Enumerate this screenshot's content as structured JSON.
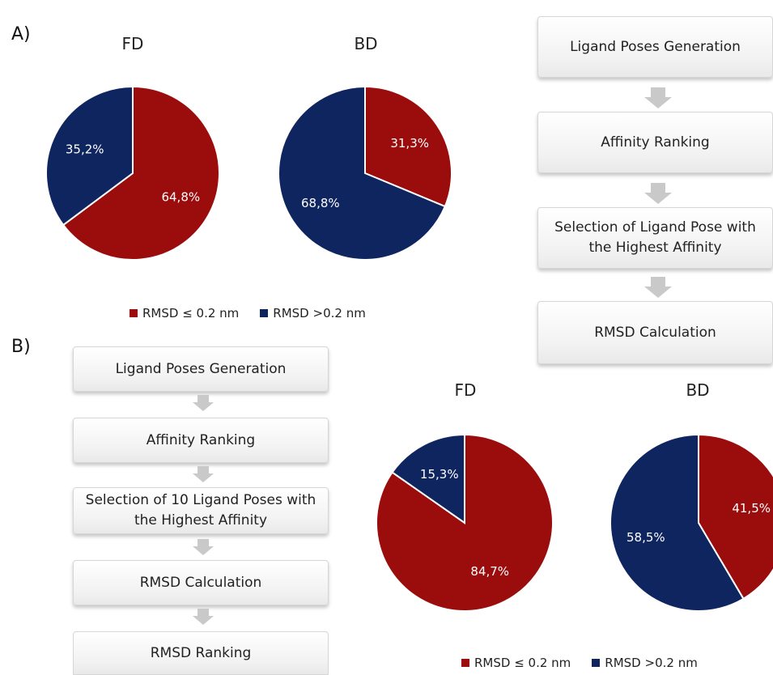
{
  "panels": {
    "a_label": "A)",
    "b_label": "B)"
  },
  "colors": {
    "rmsd_low": "#9b0d0d",
    "rmsd_high": "#0f2560"
  },
  "chart_data": [
    {
      "type": "pie",
      "panel": "A",
      "title": "FD",
      "slices": [
        {
          "name": "RMSD ≤ 0.2 nm",
          "value": 64.8,
          "label": "64,8%"
        },
        {
          "name": "RMSD >0.2 nm",
          "value": 35.2,
          "label": "35,2%"
        }
      ]
    },
    {
      "type": "pie",
      "panel": "A",
      "title": "BD",
      "slices": [
        {
          "name": "RMSD ≤ 0.2 nm",
          "value": 31.3,
          "label": "31,3%"
        },
        {
          "name": "RMSD >0.2 nm",
          "value": 68.8,
          "label": "68,8%"
        }
      ]
    },
    {
      "type": "pie",
      "panel": "B",
      "title": "FD",
      "slices": [
        {
          "name": "RMSD ≤ 0.2 nm",
          "value": 84.7,
          "label": "84,7%"
        },
        {
          "name": "RMSD >0.2 nm",
          "value": 15.3,
          "label": "15,3%"
        }
      ]
    },
    {
      "type": "pie",
      "panel": "B",
      "title": "BD",
      "slices": [
        {
          "name": "RMSD ≤ 0.2 nm",
          "value": 41.5,
          "label": "41,5%"
        },
        {
          "name": "RMSD >0.2 nm",
          "value": 58.5,
          "label": "58,5%"
        }
      ]
    }
  ],
  "legend": {
    "low": "RMSD  ≤ 0.2 nm",
    "high": "RMSD >0.2 nm"
  },
  "flow_a": {
    "step1": "Ligand Poses Generation",
    "step2": "Affinity Ranking",
    "step3": "Selection of Ligand Pose with the Highest Affinity",
    "step4": "RMSD Calculation"
  },
  "flow_b": {
    "step1": "Ligand Poses Generation",
    "step2": "Affinity Ranking",
    "step3": "Selection of 10 Ligand Poses with the Highest Affinity",
    "step4": "RMSD Calculation",
    "step5": "RMSD Ranking"
  }
}
